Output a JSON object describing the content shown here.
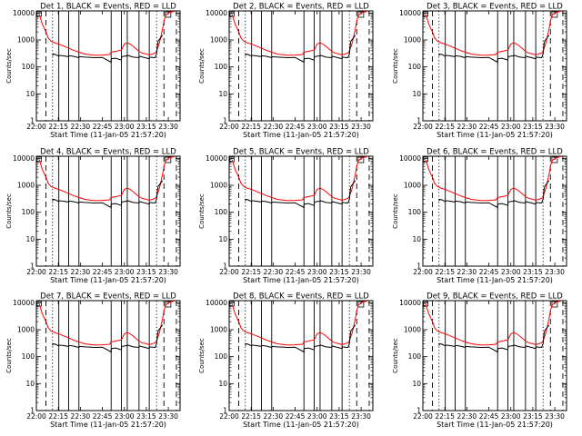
{
  "chart_data": [
    {
      "type": "line",
      "title": "Det 1, BLACK = Events, RED = LLD",
      "xlabel": "Start Time (11-Jan-05 21:57:20)",
      "ylabel": "Counts/sec"
    },
    {
      "type": "line",
      "title": "Det 2, BLACK = Events, RED = LLD",
      "xlabel": "Start Time (11-Jan-05 21:57:20)",
      "ylabel": "Counts/sec"
    },
    {
      "type": "line",
      "title": "Det 3, BLACK = Events, RED = LLD",
      "xlabel": "Start Time (11-Jan-05 21:57:20)",
      "ylabel": "Counts/sec"
    },
    {
      "type": "line",
      "title": "Det 4, BLACK = Events, RED = LLD",
      "xlabel": "Start Time (11-Jan-05 21:57:20)",
      "ylabel": "Counts/sec"
    },
    {
      "type": "line",
      "title": "Det 5, BLACK = Events, RED = LLD",
      "xlabel": "Start Time (11-Jan-05 21:57:20)",
      "ylabel": "Counts/sec"
    },
    {
      "type": "line",
      "title": "Det 6, BLACK = Events, RED = LLD",
      "xlabel": "Start Time (11-Jan-05 21:57:20)",
      "ylabel": "Counts/sec"
    },
    {
      "type": "line",
      "title": "Det 7, BLACK = Events, RED = LLD",
      "xlabel": "Start Time (11-Jan-05 21:57:20)",
      "ylabel": "Counts/sec"
    },
    {
      "type": "line",
      "title": "Det 8, BLACK = Events, RED = LLD",
      "xlabel": "Start Time (11-Jan-05 21:57:20)",
      "ylabel": "Counts/sec"
    },
    {
      "type": "line",
      "title": "Det 9, BLACK = Events, RED = LLD",
      "xlabel": "Start Time (11-Jan-05 21:57:20)",
      "ylabel": "Counts/sec"
    }
  ],
  "shared": {
    "x_unit": "minutes since 22:00",
    "x_ticks": [
      {
        "v": 0,
        "label": "22:00"
      },
      {
        "v": 15,
        "label": "22:15"
      },
      {
        "v": 30,
        "label": "22:30"
      },
      {
        "v": 45,
        "label": "22:45"
      },
      {
        "v": 60,
        "label": "23:00"
      },
      {
        "v": 75,
        "label": "23:15"
      },
      {
        "v": 90,
        "label": "23:30"
      }
    ],
    "y_scale": "log",
    "y_ticks": [
      {
        "v": 1,
        "label": "1"
      },
      {
        "v": 10,
        "label": "10"
      },
      {
        "v": 100,
        "label": "100"
      },
      {
        "v": 1000,
        "label": "1000"
      },
      {
        "v": 10000,
        "label": "10000"
      }
    ],
    "xlim": [
      0,
      98
    ],
    "ylim": [
      1,
      12000
    ],
    "colors": {
      "events": "#000000",
      "lld": "#ff0000"
    },
    "vlines_solid": [
      15.3,
      22,
      29,
      51,
      58,
      62,
      70,
      77
    ],
    "vlines_dashed": [
      6.5,
      87,
      95.5
    ],
    "vlines_dotted": [
      11,
      82
    ],
    "series": [
      {
        "name": "LLD",
        "color": "#ff0000",
        "x": [
          2,
          4,
          6.5,
          8,
          10,
          12,
          15.3,
          20,
          22,
          25,
          29,
          33,
          40,
          45,
          50,
          51,
          54,
          58,
          60,
          62,
          65,
          70,
          72,
          75,
          77,
          79,
          81,
          82,
          84,
          86,
          87,
          88,
          90,
          92,
          94
        ],
        "y": [
          9000,
          4000,
          2000,
          1200,
          900,
          800,
          700,
          550,
          500,
          420,
          350,
          300,
          270,
          275,
          290,
          350,
          380,
          420,
          700,
          800,
          650,
          380,
          330,
          300,
          280,
          300,
          330,
          380,
          800,
          2500,
          5000,
          8000,
          10000,
          11000,
          11500
        ]
      },
      {
        "name": "Events",
        "color": "#000000",
        "x": [
          11,
          11.5,
          13,
          15.3,
          15.5,
          18,
          22,
          22.2,
          25,
          29,
          29.2,
          33,
          40,
          45,
          51,
          51.2,
          54,
          58,
          58.2,
          62,
          62.2,
          66,
          70,
          70.2,
          77,
          77.2,
          79,
          81,
          82,
          82.5,
          83,
          86
        ],
        "y": [
          260,
          300,
          290,
          250,
          270,
          260,
          240,
          260,
          250,
          220,
          240,
          230,
          220,
          225,
          150,
          200,
          210,
          180,
          240,
          260,
          270,
          230,
          220,
          250,
          200,
          230,
          225,
          220,
          300,
          600,
          900,
          1500
        ]
      }
    ]
  }
}
